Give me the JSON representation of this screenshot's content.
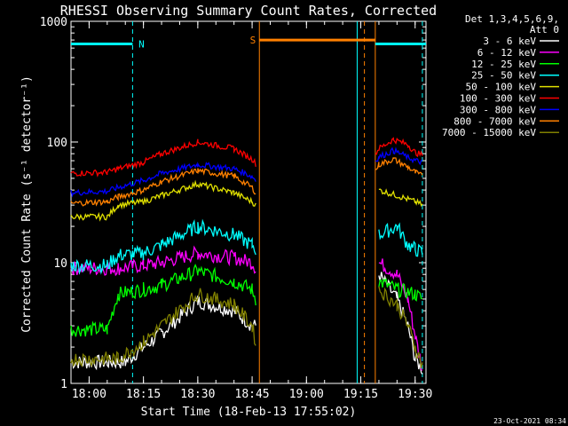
{
  "chart_data": {
    "type": "line",
    "title": "RHESSI Observing Summary Count Rates, Corrected",
    "xlabel": "Start Time (18-Feb-13 17:55:02)",
    "ylabel": "Corrected Count Rate (s⁻¹ detector⁻¹)",
    "y_scale": "log",
    "xlim": [
      "17:55",
      "19:33"
    ],
    "ylim": [
      1,
      1000
    ],
    "x_ticks": [
      "18:00",
      "18:15",
      "18:30",
      "18:45",
      "19:00",
      "19:15",
      "19:30"
    ],
    "y_ticks": [
      "1",
      "10",
      "100",
      "1000"
    ],
    "legend_position": "top-right",
    "legend_header": [
      "Det 1,3,4,5,6,9,",
      "Att 0"
    ],
    "timestamp": "23-Oct-2021 08:34",
    "flags": [
      {
        "label": "N",
        "color": "#00ffff",
        "start": "17:55",
        "end": "18:12",
        "level": 650
      },
      {
        "label": "S",
        "color": "#ff8000",
        "start": "18:47",
        "end": "19:19",
        "level": 700
      },
      {
        "label": "",
        "color": "#00ffff",
        "start": "19:19",
        "end": "19:33",
        "level": 650
      }
    ],
    "vlines": [
      {
        "time": "18:12",
        "color": "#00ffff",
        "style": "dashed"
      },
      {
        "time": "18:47",
        "color": "#ff8000",
        "style": "solid"
      },
      {
        "time": "19:14",
        "color": "#00ffff",
        "style": "solid"
      },
      {
        "time": "19:16",
        "color": "#ff8000",
        "style": "dashed"
      },
      {
        "time": "19:19",
        "color": "#ff8000",
        "style": "solid"
      },
      {
        "time": "19:32",
        "color": "#00ffff",
        "style": "dashed"
      }
    ],
    "series": [
      {
        "name": "3 - 6 keV",
        "color": "#ffffff",
        "x": [
          "17:55",
          "18:05",
          "18:10",
          "18:15",
          "18:20",
          "18:30",
          "18:40",
          "18:45",
          "18:46",
          "19:20",
          "19:25",
          "19:28",
          "19:30",
          "19:32"
        ],
        "y": [
          1.5,
          1.5,
          1.5,
          2.0,
          2.6,
          4.8,
          4.0,
          3.0,
          3.0,
          8,
          5,
          3,
          1.6,
          1.3
        ]
      },
      {
        "name": "6 - 12 keV",
        "color": "#ff00ff",
        "x": [
          "17:55",
          "18:05",
          "18:08",
          "18:15",
          "18:20",
          "18:30",
          "18:40",
          "18:45",
          "18:46",
          "19:20",
          "19:25",
          "19:28",
          "19:30",
          "19:32"
        ],
        "y": [
          9,
          9,
          9,
          9.5,
          10,
          12,
          11,
          10,
          9,
          10,
          8,
          5,
          2.5,
          1.3
        ]
      },
      {
        "name": "12 - 25 keV",
        "color": "#00ff00",
        "x": [
          "17:55",
          "18:05",
          "18:08",
          "18:15",
          "18:20",
          "18:30",
          "18:40",
          "18:45",
          "18:46",
          "19:20",
          "19:25",
          "19:30",
          "19:32"
        ],
        "y": [
          2.8,
          2.8,
          5.5,
          6,
          6.5,
          8.5,
          7,
          6,
          5,
          7,
          6,
          5.5,
          5
        ]
      },
      {
        "name": "25 - 50 keV",
        "color": "#00ffff",
        "x": [
          "17:55",
          "18:05",
          "18:08",
          "18:15",
          "18:20",
          "18:30",
          "18:40",
          "18:45",
          "18:46",
          "19:20",
          "19:25",
          "19:28",
          "19:30",
          "19:32"
        ],
        "y": [
          9.5,
          9.5,
          11.5,
          12,
          14,
          20,
          17,
          14,
          13,
          17,
          20,
          14,
          13,
          12
        ]
      },
      {
        "name": "50 - 100 keV",
        "color": "#e0e000",
        "x": [
          "17:55",
          "18:05",
          "18:08",
          "18:15",
          "18:20",
          "18:30",
          "18:40",
          "18:45",
          "18:46",
          "19:20",
          "19:25",
          "19:30",
          "19:32"
        ],
        "y": [
          24,
          24,
          30,
          32,
          36,
          45,
          38,
          32,
          30,
          40,
          36,
          32,
          30
        ]
      },
      {
        "name": "100 - 300 keV",
        "color": "#ff0000",
        "x": [
          "17:55",
          "18:05",
          "18:08",
          "18:15",
          "18:20",
          "18:30",
          "18:40",
          "18:45",
          "18:46",
          "19:19",
          "19:20",
          "19:24",
          "19:28",
          "19:30",
          "19:32"
        ],
        "y": [
          55,
          56,
          60,
          68,
          80,
          100,
          88,
          72,
          66,
          80,
          88,
          105,
          95,
          82,
          78
        ]
      },
      {
        "name": "300 - 800 keV",
        "color": "#0000ff",
        "x": [
          "17:55",
          "18:05",
          "18:08",
          "18:15",
          "18:20",
          "18:30",
          "18:40",
          "18:45",
          "18:46",
          "19:19",
          "19:20",
          "19:24",
          "19:28",
          "19:30",
          "19:32"
        ],
        "y": [
          38,
          39,
          42,
          48,
          55,
          65,
          60,
          52,
          48,
          70,
          75,
          85,
          75,
          70,
          68
        ]
      },
      {
        "name": "800 - 7000 keV",
        "color": "#ff8000",
        "x": [
          "17:55",
          "18:05",
          "18:08",
          "18:15",
          "18:20",
          "18:30",
          "18:40",
          "18:45",
          "18:46",
          "19:19",
          "19:20",
          "19:24",
          "19:28",
          "19:30",
          "19:32"
        ],
        "y": [
          31,
          32,
          35,
          40,
          47,
          58,
          52,
          42,
          38,
          58,
          65,
          72,
          62,
          56,
          52
        ]
      },
      {
        "name": "7000 - 15000 keV",
        "color": "#808000",
        "x": [
          "17:55",
          "18:05",
          "18:08",
          "18:15",
          "18:20",
          "18:30",
          "18:40",
          "18:45",
          "18:46",
          "19:20",
          "19:25",
          "19:28",
          "19:30",
          "19:32"
        ],
        "y": [
          1.6,
          1.6,
          1.6,
          2.2,
          3,
          5.5,
          4.5,
          3,
          2.2,
          6,
          4.5,
          3,
          2,
          1.4
        ]
      }
    ]
  }
}
